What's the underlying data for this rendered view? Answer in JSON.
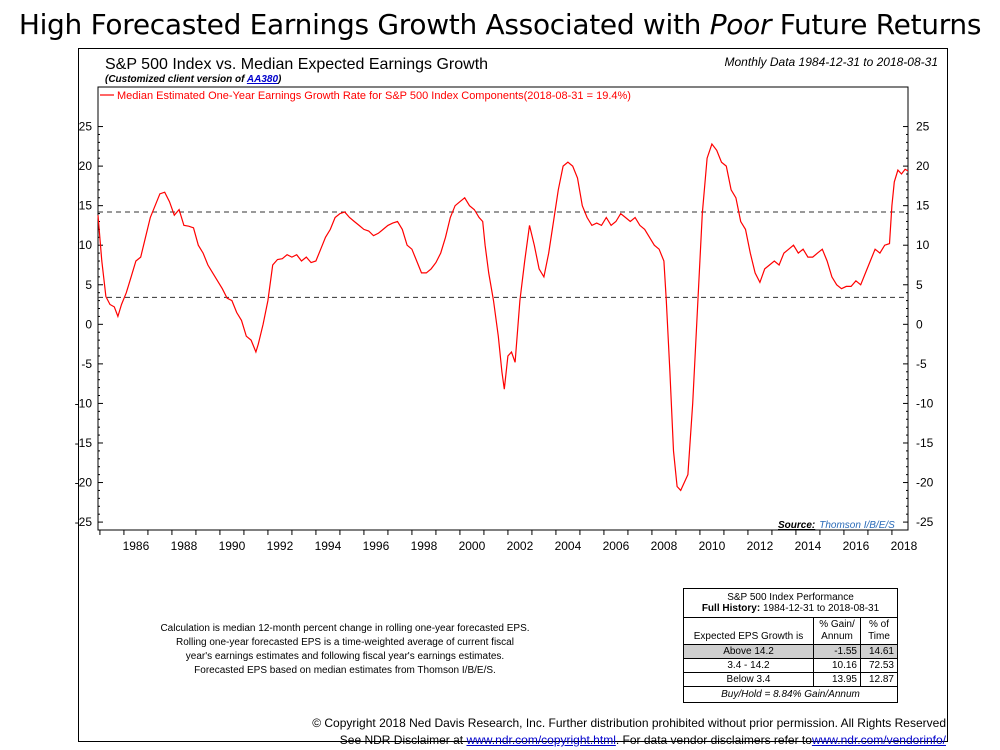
{
  "headline": {
    "pre": "High Forecasted Earnings Growth Associated with ",
    "em": "Poor",
    "post": " Future Returns"
  },
  "chart_title": "S&P 500 Index vs. Median Expected Earnings Growth",
  "chart_subtitle": {
    "pre": "(Customized client version of ",
    "link": "AA380",
    "post": ")"
  },
  "date_range": "Monthly Data 1984-12-31 to 2018-08-31",
  "source": {
    "label": "Source:",
    "value": "Thomson I/B/E/S"
  },
  "notes": [
    "Calculation is median 12-month percent change in rolling one-year forecasted EPS.",
    "Rolling one-year forecasted EPS is a time-weighted average of current fiscal",
    "year's earnings estimates and following fiscal year's earnings estimates.",
    "Forecasted EPS based on median estimates from Thomson I/B/E/S."
  ],
  "performance_table": {
    "title": "S&P 500 Index Performance",
    "history_label": "Full History:",
    "history_range": "1984-12-31 to 2018-08-31",
    "col_headers": [
      "Expected EPS Growth is",
      "% Gain/ Annum",
      "% of Time"
    ],
    "rows": [
      {
        "label": "Above 14.2",
        "gain": "-1.55",
        "time": "14.61",
        "shaded": true
      },
      {
        "label": "3.4 - 14.2",
        "gain": "10.16",
        "time": "72.53",
        "shaded": false
      },
      {
        "label": "Below 3.4",
        "gain": "13.95",
        "time": "12.87",
        "shaded": false
      }
    ],
    "buy_hold": "Buy/Hold = 8.84% Gain/Annum"
  },
  "footer": {
    "line1": "© Copyright 2018 Ned Davis Research, Inc. Further distribution prohibited without prior permission. All Rights Reserved",
    "line2_pre": "See NDR Disclaimer at ",
    "line2_link1": "www.ndr.com/copyright.html",
    "line2_mid": ". For data vendor disclaimers refer to",
    "line2_link2": "www.ndr.com/vendorinfo/"
  },
  "chart_data": {
    "type": "line",
    "title": "S&P 500 Index vs. Median Expected Earnings Growth",
    "ylim": [
      -26,
      30
    ],
    "y_ticks": [
      25,
      20,
      15,
      10,
      5,
      0,
      -5,
      -10,
      -15,
      -20,
      -25
    ],
    "x_range": [
      1984.92,
      2018.67
    ],
    "x_tick_labels": [
      "1986",
      "1988",
      "1990",
      "1992",
      "1994",
      "1996",
      "1998",
      "2000",
      "2002",
      "2004",
      "2006",
      "2008",
      "2010",
      "2012",
      "2014",
      "2016",
      "2018"
    ],
    "grid": false,
    "legend_position": "top-left",
    "reference_lines": [
      14.2,
      3.4
    ],
    "series": [
      {
        "name": "Median Estimated One-Year Earnings Growth Rate for S&P 500 Index Components(2018-08-31 = 19.4%)",
        "color": "#ff0000",
        "points": [
          [
            1984.92,
            13.8
          ],
          [
            1985.08,
            8.0
          ],
          [
            1985.25,
            3.5
          ],
          [
            1985.42,
            2.5
          ],
          [
            1985.6,
            2.2
          ],
          [
            1985.75,
            1.0
          ],
          [
            1985.9,
            2.5
          ],
          [
            1986.1,
            4.0
          ],
          [
            1986.3,
            6.0
          ],
          [
            1986.5,
            8.0
          ],
          [
            1986.7,
            8.5
          ],
          [
            1986.9,
            11.0
          ],
          [
            1987.1,
            13.5
          ],
          [
            1987.3,
            15.0
          ],
          [
            1987.5,
            16.5
          ],
          [
            1987.7,
            16.7
          ],
          [
            1987.9,
            15.5
          ],
          [
            1988.1,
            13.8
          ],
          [
            1988.3,
            14.5
          ],
          [
            1988.5,
            12.5
          ],
          [
            1988.7,
            12.4
          ],
          [
            1988.9,
            12.2
          ],
          [
            1989.1,
            10.0
          ],
          [
            1989.3,
            9.0
          ],
          [
            1989.5,
            7.5
          ],
          [
            1989.7,
            6.5
          ],
          [
            1989.9,
            5.5
          ],
          [
            1990.1,
            4.5
          ],
          [
            1990.3,
            3.3
          ],
          [
            1990.5,
            3.0
          ],
          [
            1990.7,
            1.5
          ],
          [
            1990.9,
            0.5
          ],
          [
            1991.1,
            -1.5
          ],
          [
            1991.3,
            -2.0
          ],
          [
            1991.5,
            -3.5
          ],
          [
            1991.6,
            -2.5
          ],
          [
            1991.8,
            0.0
          ],
          [
            1992.0,
            3.0
          ],
          [
            1992.2,
            7.5
          ],
          [
            1992.4,
            8.2
          ],
          [
            1992.6,
            8.3
          ],
          [
            1992.8,
            8.8
          ],
          [
            1993.0,
            8.5
          ],
          [
            1993.2,
            8.8
          ],
          [
            1993.4,
            8.0
          ],
          [
            1993.6,
            8.5
          ],
          [
            1993.8,
            7.8
          ],
          [
            1994.0,
            8.0
          ],
          [
            1994.2,
            9.5
          ],
          [
            1994.4,
            11.0
          ],
          [
            1994.6,
            12.0
          ],
          [
            1994.8,
            13.5
          ],
          [
            1995.0,
            14.0
          ],
          [
            1995.2,
            14.2
          ],
          [
            1995.4,
            13.5
          ],
          [
            1995.6,
            13.0
          ],
          [
            1995.8,
            12.5
          ],
          [
            1996.0,
            12.0
          ],
          [
            1996.2,
            11.8
          ],
          [
            1996.4,
            11.2
          ],
          [
            1996.6,
            11.5
          ],
          [
            1996.8,
            12.0
          ],
          [
            1997.0,
            12.5
          ],
          [
            1997.2,
            12.8
          ],
          [
            1997.4,
            13.0
          ],
          [
            1997.6,
            12.0
          ],
          [
            1997.8,
            10.0
          ],
          [
            1998.0,
            9.5
          ],
          [
            1998.2,
            8.0
          ],
          [
            1998.4,
            6.5
          ],
          [
            1998.6,
            6.5
          ],
          [
            1998.8,
            7.0
          ],
          [
            1999.0,
            7.8
          ],
          [
            1999.2,
            9.0
          ],
          [
            1999.4,
            11.0
          ],
          [
            1999.6,
            13.5
          ],
          [
            1999.8,
            15.0
          ],
          [
            2000.0,
            15.5
          ],
          [
            2000.2,
            16.0
          ],
          [
            2000.4,
            15.0
          ],
          [
            2000.6,
            14.5
          ],
          [
            2000.8,
            13.5
          ],
          [
            2000.95,
            13.0
          ],
          [
            2001.05,
            10.0
          ],
          [
            2001.2,
            6.5
          ],
          [
            2001.4,
            3.0
          ],
          [
            2001.6,
            -1.5
          ],
          [
            2001.75,
            -6.0
          ],
          [
            2001.85,
            -8.2
          ],
          [
            2002.0,
            -4.0
          ],
          [
            2002.15,
            -3.5
          ],
          [
            2002.3,
            -4.8
          ],
          [
            2002.5,
            3.0
          ],
          [
            2002.7,
            8.0
          ],
          [
            2002.9,
            12.5
          ],
          [
            2003.1,
            10.0
          ],
          [
            2003.3,
            7.0
          ],
          [
            2003.5,
            6.0
          ],
          [
            2003.7,
            9.0
          ],
          [
            2003.9,
            13.0
          ],
          [
            2004.1,
            17.0
          ],
          [
            2004.3,
            20.0
          ],
          [
            2004.5,
            20.5
          ],
          [
            2004.7,
            20.0
          ],
          [
            2004.9,
            18.5
          ],
          [
            2005.1,
            15.0
          ],
          [
            2005.3,
            13.5
          ],
          [
            2005.5,
            12.5
          ],
          [
            2005.7,
            12.8
          ],
          [
            2005.9,
            12.5
          ],
          [
            2006.1,
            13.5
          ],
          [
            2006.3,
            12.5
          ],
          [
            2006.5,
            13.0
          ],
          [
            2006.7,
            14.0
          ],
          [
            2006.9,
            13.5
          ],
          [
            2007.1,
            13.0
          ],
          [
            2007.3,
            13.5
          ],
          [
            2007.5,
            12.5
          ],
          [
            2007.7,
            12.0
          ],
          [
            2007.9,
            11.0
          ],
          [
            2008.1,
            10.0
          ],
          [
            2008.3,
            9.5
          ],
          [
            2008.5,
            8.0
          ],
          [
            2008.6,
            3.0
          ],
          [
            2008.75,
            -6.0
          ],
          [
            2008.9,
            -16.0
          ],
          [
            2009.05,
            -20.5
          ],
          [
            2009.2,
            -21.0
          ],
          [
            2009.35,
            -20.0
          ],
          [
            2009.5,
            -19.0
          ],
          [
            2009.7,
            -10.0
          ],
          [
            2009.9,
            2.0
          ],
          [
            2010.1,
            14.0
          ],
          [
            2010.3,
            21.0
          ],
          [
            2010.5,
            22.8
          ],
          [
            2010.7,
            22.0
          ],
          [
            2010.9,
            20.5
          ],
          [
            2011.1,
            20.0
          ],
          [
            2011.3,
            17.0
          ],
          [
            2011.5,
            16.0
          ],
          [
            2011.7,
            13.0
          ],
          [
            2011.9,
            12.0
          ],
          [
            2012.1,
            9.0
          ],
          [
            2012.3,
            6.5
          ],
          [
            2012.5,
            5.3
          ],
          [
            2012.7,
            7.0
          ],
          [
            2012.9,
            7.5
          ],
          [
            2013.1,
            8.0
          ],
          [
            2013.3,
            7.5
          ],
          [
            2013.5,
            9.0
          ],
          [
            2013.7,
            9.5
          ],
          [
            2013.9,
            10.0
          ],
          [
            2014.1,
            9.0
          ],
          [
            2014.3,
            9.5
          ],
          [
            2014.5,
            8.5
          ],
          [
            2014.7,
            8.5
          ],
          [
            2014.9,
            9.0
          ],
          [
            2015.1,
            9.5
          ],
          [
            2015.3,
            8.0
          ],
          [
            2015.5,
            6.0
          ],
          [
            2015.7,
            5.0
          ],
          [
            2015.9,
            4.5
          ],
          [
            2016.1,
            4.8
          ],
          [
            2016.3,
            4.8
          ],
          [
            2016.5,
            5.5
          ],
          [
            2016.7,
            5.0
          ],
          [
            2016.9,
            6.5
          ],
          [
            2017.1,
            8.0
          ],
          [
            2017.3,
            9.5
          ],
          [
            2017.5,
            9.0
          ],
          [
            2017.7,
            10.0
          ],
          [
            2017.9,
            10.2
          ],
          [
            2018.0,
            15.0
          ],
          [
            2018.1,
            18.0
          ],
          [
            2018.25,
            19.5
          ],
          [
            2018.4,
            19.0
          ],
          [
            2018.55,
            19.6
          ],
          [
            2018.67,
            19.4
          ]
        ]
      }
    ]
  }
}
